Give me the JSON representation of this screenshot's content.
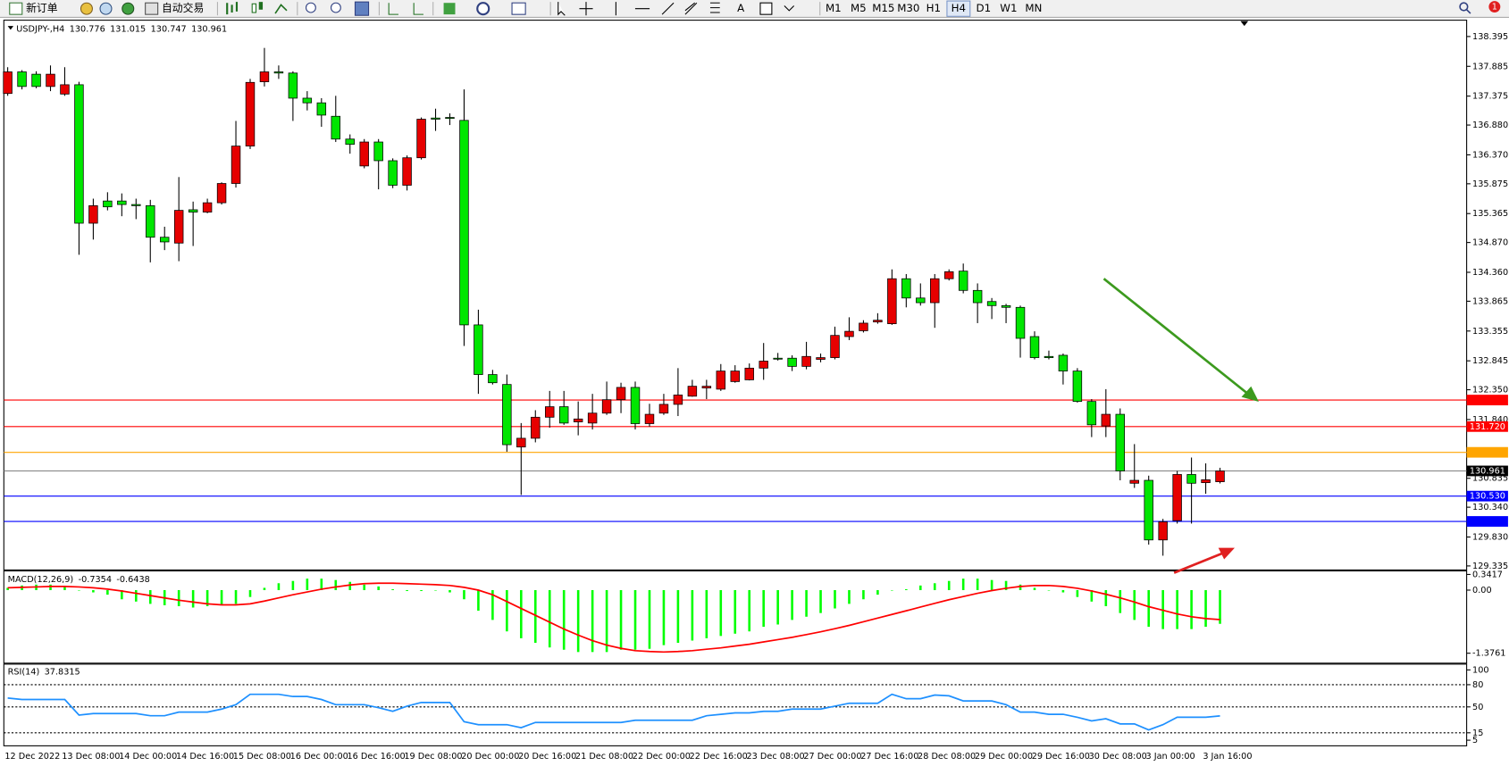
{
  "toolbar": {
    "new_order": "新订单",
    "auto_trading": "自动交易",
    "text_tool": "A",
    "alerts": 1,
    "timeframes": [
      "M1",
      "M5",
      "M15",
      "M30",
      "H1",
      "H4",
      "D1",
      "W1",
      "MN"
    ]
  },
  "chart_data": [
    {
      "type": "candlestick",
      "title": "USDJPY-,H4",
      "categories": [
        "12 Dec 2022",
        null,
        null,
        null,
        "13 Dec 08:00",
        null,
        null,
        null,
        "14 Dec 00:00",
        null,
        null,
        null,
        "14 Dec 16:00",
        null,
        null,
        null,
        "15 Dec 08:00",
        null,
        null,
        null,
        "16 Dec 00:00",
        null,
        null,
        null,
        "16 Dec 16:00",
        null,
        null,
        null,
        "19 Dec 08:00",
        null,
        null,
        null,
        "20 Dec 00:00",
        null,
        null,
        null,
        "20 Dec 16:00",
        null,
        null,
        null,
        "21 Dec 08:00",
        null,
        null,
        null,
        "22 Dec 00:00",
        null,
        null,
        null,
        "22 Dec 16:00",
        null,
        null,
        null,
        "23 Dec 08:00",
        null,
        null,
        null,
        "27 Dec 00:00",
        null,
        null,
        null,
        "27 Dec 16:00",
        null,
        null,
        null,
        "28 Dec 08:00",
        null,
        null,
        null,
        "29 Dec 00:00",
        null,
        null,
        null,
        "29 Dec 16:00",
        null,
        null,
        null,
        "30 Dec 08:00",
        null,
        null,
        null,
        "3 Jan 00:00",
        null,
        null,
        null,
        "3 Jan 16:00",
        null
      ],
      "open": [
        137.42,
        137.79,
        137.75,
        137.54,
        137.41,
        137.57,
        135.2,
        135.58,
        135.58,
        135.52,
        135.5,
        134.96,
        134.86,
        135.43,
        135.39,
        135.55,
        135.88,
        136.52,
        137.62,
        137.79,
        137.77,
        137.34,
        137.26,
        137.03,
        136.64,
        136.18,
        136.59,
        136.27,
        135.85,
        136.32,
        137.0,
        137.01,
        136.96,
        133.46,
        132.61,
        132.44,
        131.37,
        131.52,
        131.88,
        132.06,
        131.8,
        131.78,
        131.95,
        132.18,
        132.39,
        131.77,
        131.95,
        132.1,
        132.24,
        132.38,
        132.36,
        132.49,
        132.52,
        132.72,
        132.89,
        132.89,
        132.75,
        132.87,
        132.9,
        133.26,
        133.36,
        133.51,
        133.48,
        134.25,
        133.92,
        133.84,
        134.25,
        134.38,
        134.05,
        133.86,
        133.79,
        133.76,
        133.26,
        132.92,
        132.94,
        132.67,
        132.15,
        131.73,
        131.93,
        130.75,
        130.8,
        129.78,
        130.11,
        130.9,
        130.76,
        130.776
      ],
      "high": [
        137.87,
        137.82,
        137.8,
        137.9,
        137.87,
        137.62,
        135.62,
        135.73,
        135.71,
        135.62,
        135.6,
        135.14,
        135.99,
        135.57,
        135.62,
        135.9,
        136.95,
        137.67,
        138.2,
        137.9,
        137.8,
        137.46,
        137.34,
        137.38,
        136.72,
        136.64,
        136.64,
        136.31,
        136.36,
        137.01,
        137.16,
        137.08,
        137.49,
        133.72,
        132.69,
        132.61,
        131.78,
        132.0,
        132.33,
        132.33,
        132.15,
        132.28,
        132.49,
        132.47,
        132.49,
        132.11,
        132.28,
        132.72,
        132.52,
        132.52,
        132.79,
        132.77,
        132.8,
        133.15,
        132.98,
        132.94,
        133.17,
        132.97,
        133.43,
        133.59,
        133.54,
        133.66,
        134.41,
        134.33,
        134.17,
        134.33,
        134.41,
        134.51,
        134.17,
        133.92,
        133.82,
        133.79,
        133.35,
        133.02,
        132.97,
        132.72,
        132.19,
        132.36,
        132.03,
        131.42,
        130.88,
        130.14,
        130.96,
        131.19,
        131.09,
        131.015
      ],
      "low": [
        137.38,
        137.49,
        137.51,
        137.46,
        137.38,
        134.66,
        134.92,
        135.42,
        135.32,
        135.27,
        134.53,
        134.74,
        134.55,
        134.81,
        135.37,
        135.52,
        135.81,
        136.47,
        137.54,
        137.67,
        136.95,
        137.13,
        136.85,
        136.59,
        136.39,
        136.14,
        135.78,
        135.8,
        135.76,
        136.29,
        136.78,
        136.88,
        133.1,
        132.28,
        132.44,
        131.29,
        130.55,
        131.45,
        131.7,
        131.75,
        131.57,
        131.67,
        131.92,
        131.95,
        131.67,
        131.72,
        131.92,
        131.9,
        132.23,
        132.19,
        132.33,
        132.47,
        132.51,
        132.52,
        132.85,
        132.67,
        132.7,
        132.82,
        132.87,
        133.2,
        133.33,
        133.48,
        133.46,
        133.76,
        133.79,
        133.41,
        134.22,
        134.0,
        133.49,
        133.56,
        133.49,
        132.9,
        132.87,
        132.87,
        132.44,
        132.13,
        131.54,
        131.54,
        130.8,
        130.67,
        129.7,
        129.51,
        130.06,
        130.06,
        130.57,
        130.747
      ],
      "close": [
        137.79,
        137.54,
        137.54,
        137.75,
        137.57,
        135.2,
        135.5,
        135.48,
        135.52,
        135.5,
        134.96,
        134.88,
        135.42,
        135.39,
        135.55,
        135.88,
        136.52,
        137.61,
        137.79,
        137.77,
        137.34,
        137.26,
        137.05,
        136.64,
        136.55,
        136.59,
        136.27,
        135.85,
        136.32,
        136.98,
        136.98,
        137.0,
        133.46,
        132.61,
        132.47,
        131.41,
        131.52,
        131.88,
        132.06,
        131.78,
        131.85,
        131.95,
        132.18,
        132.39,
        131.77,
        131.93,
        132.1,
        132.26,
        132.41,
        132.41,
        132.67,
        132.67,
        132.72,
        132.84,
        132.88,
        132.75,
        132.92,
        132.9,
        133.28,
        133.35,
        133.49,
        133.54,
        134.25,
        133.92,
        133.84,
        134.25,
        134.37,
        134.05,
        133.84,
        133.79,
        133.76,
        133.23,
        132.9,
        132.9,
        132.67,
        132.15,
        131.75,
        131.93,
        130.96,
        130.8,
        129.78,
        130.09,
        130.9,
        130.75,
        130.81,
        130.961
      ],
      "up_color": "#e60000",
      "down_color": "#00e600",
      "bid_color": "#808080",
      "ylim": [
        129.283,
        138.658
      ],
      "yticks": [
        138.395,
        137.885,
        137.375,
        {
          "value": 136.88,
          "label": "136.880"
        },
        {
          "value": 136.37,
          "label": "136.370"
        },
        135.875,
        135.365,
        {
          "value": 134.87,
          "label": "134.870"
        },
        {
          "value": 134.36,
          "label": "134.360"
        },
        133.865,
        133.355,
        132.845,
        {
          "value": 132.35,
          "label": "132.350"
        },
        {
          "value": 131.84,
          "label": "131.840"
        },
        130.835,
        {
          "value": 130.34,
          "label": "130.340"
        },
        {
          "value": 129.83,
          "label": "129.830"
        },
        129.335
      ],
      "levels": [
        {
          "value": 132.174,
          "color": "#ff0000"
        },
        {
          "value": 131.72,
          "label": "131.720",
          "color": "#ff0000"
        },
        {
          "value": 131.279,
          "color": "#ffa500"
        },
        {
          "value": 130.53,
          "label": "130.530",
          "color": "#0000ff"
        },
        {
          "value": 130.097,
          "color": "#0000ff"
        }
      ],
      "grid": false
    },
    {
      "type": "macd",
      "title": "MACD(12,26,9)",
      "histogram": {
        "color": "#00ff00",
        "values": [
          0.05,
          0.1,
          0.12,
          0.12,
          0.08,
          0.0,
          -0.05,
          -0.1,
          -0.2,
          -0.25,
          -0.3,
          -0.33,
          -0.35,
          -0.38,
          -0.35,
          -0.33,
          -0.3,
          -0.15,
          0.05,
          0.15,
          0.2,
          0.25,
          0.25,
          0.22,
          0.18,
          0.12,
          0.08,
          0.02,
          -0.02,
          -0.02,
          0.0,
          -0.05,
          -0.2,
          -0.45,
          -0.65,
          -0.9,
          -1.05,
          -1.15,
          -1.25,
          -1.3,
          -1.35,
          -1.35,
          -1.35,
          -1.3,
          -1.3,
          -1.28,
          -1.2,
          -1.15,
          -1.1,
          -1.05,
          -1.0,
          -0.95,
          -0.9,
          -0.8,
          -0.75,
          -0.65,
          -0.58,
          -0.5,
          -0.4,
          -0.3,
          -0.2,
          -0.1,
          0.0,
          0.02,
          0.1,
          0.15,
          0.2,
          0.25,
          0.25,
          0.22,
          0.2,
          0.12,
          0.05,
          0.0,
          -0.05,
          -0.15,
          -0.25,
          -0.35,
          -0.5,
          -0.65,
          -0.8,
          -0.85,
          -0.85,
          -0.85,
          -0.8,
          -0.7354
        ]
      },
      "signal": {
        "color": "#ff0000",
        "values": [
          0.05,
          0.06,
          0.07,
          0.08,
          0.08,
          0.07,
          0.05,
          0.02,
          -0.02,
          -0.07,
          -0.12,
          -0.17,
          -0.22,
          -0.26,
          -0.3,
          -0.32,
          -0.32,
          -0.3,
          -0.24,
          -0.17,
          -0.1,
          -0.04,
          0.02,
          0.07,
          0.11,
          0.14,
          0.15,
          0.15,
          0.14,
          0.13,
          0.12,
          0.1,
          0.06,
          0.0,
          -0.1,
          -0.25,
          -0.4,
          -0.55,
          -0.7,
          -0.85,
          -0.98,
          -1.1,
          -1.2,
          -1.27,
          -1.32,
          -1.34,
          -1.35,
          -1.34,
          -1.32,
          -1.29,
          -1.26,
          -1.22,
          -1.18,
          -1.13,
          -1.08,
          -1.03,
          -0.97,
          -0.91,
          -0.84,
          -0.77,
          -0.69,
          -0.61,
          -0.53,
          -0.45,
          -0.37,
          -0.29,
          -0.21,
          -0.14,
          -0.07,
          -0.01,
          0.04,
          0.08,
          0.1,
          0.1,
          0.08,
          0.04,
          -0.02,
          -0.09,
          -0.17,
          -0.26,
          -0.36,
          -0.44,
          -0.52,
          -0.58,
          -0.62,
          -0.6438
        ]
      },
      "ylim": [
        -1.572,
        0.398
      ],
      "yticks": [
        0.3417,
        {
          "value": 0,
          "label": "0.00"
        },
        -1.3761
      ]
    },
    {
      "type": "line",
      "title": "RSI(14)",
      "color": "#1e90ff",
      "values": [
        62,
        60,
        60,
        60,
        60,
        39,
        41,
        41,
        41,
        41,
        38,
        38,
        43,
        43,
        43,
        47,
        53,
        67,
        67,
        67,
        64,
        64,
        60,
        53,
        53,
        53,
        49,
        44,
        51,
        56,
        56,
        56,
        30,
        26,
        26,
        26,
        22,
        29,
        29,
        29,
        29,
        29,
        29,
        29,
        32,
        32,
        32,
        32,
        32,
        38,
        40,
        42,
        42,
        44,
        44,
        47,
        47,
        47,
        51,
        55,
        55,
        55,
        67,
        61,
        61,
        66,
        65,
        58,
        58,
        58,
        53,
        43,
        43,
        40,
        40,
        36,
        31,
        34,
        27,
        27,
        19,
        26,
        36,
        36,
        36,
        37.8315
      ],
      "ylim": [
        -1.3,
        107.8
      ],
      "yticks": [
        100,
        80,
        50,
        15,
        5
      ],
      "levels": [
        80,
        50,
        15
      ]
    }
  ]
}
